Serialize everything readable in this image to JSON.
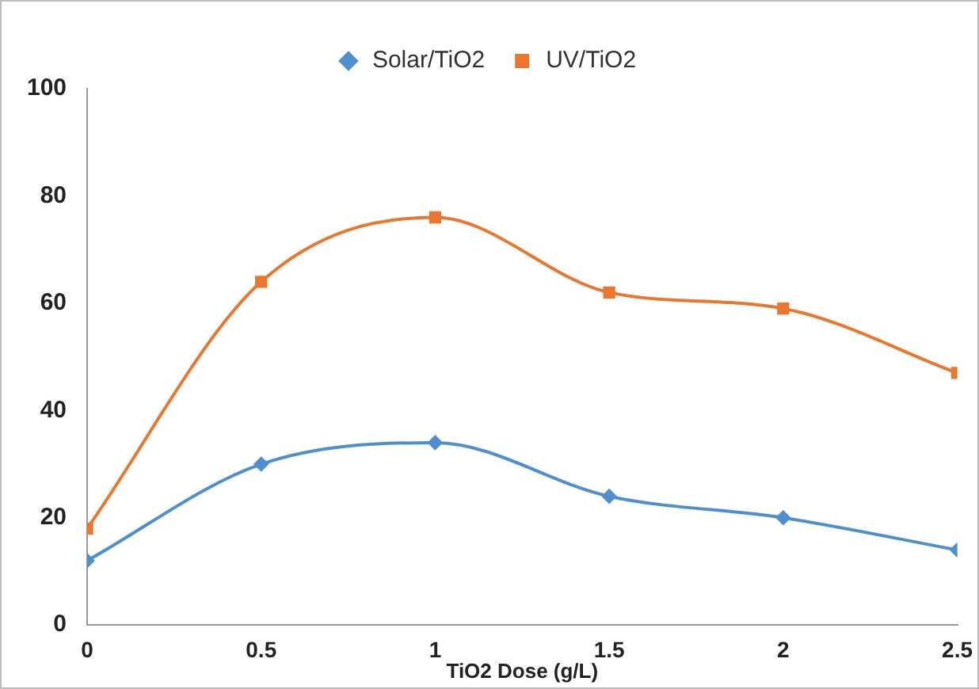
{
  "chart_data": {
    "type": "line",
    "xlabel": "TiO2 Dose (g/L)",
    "x": [
      0,
      0.5,
      1,
      1.5,
      2,
      2.5
    ],
    "xlim": [
      0,
      2.5
    ],
    "xticks": [
      0,
      0.5,
      1,
      1.5,
      2,
      2.5
    ],
    "ylim": [
      0,
      100
    ],
    "yticks": [
      0,
      20,
      40,
      60,
      80,
      100
    ],
    "grid": false,
    "legend": "top",
    "line_style": "solid",
    "series": [
      {
        "name": "Solar/TiO2",
        "color": "#4f8fd0",
        "marker": "diamond",
        "values": [
          12,
          30,
          34,
          24,
          20,
          14
        ]
      },
      {
        "name": "UV/TiO2",
        "color": "#e9772e",
        "marker": "square",
        "values": [
          18,
          64,
          76,
          62,
          59,
          47
        ]
      }
    ]
  }
}
